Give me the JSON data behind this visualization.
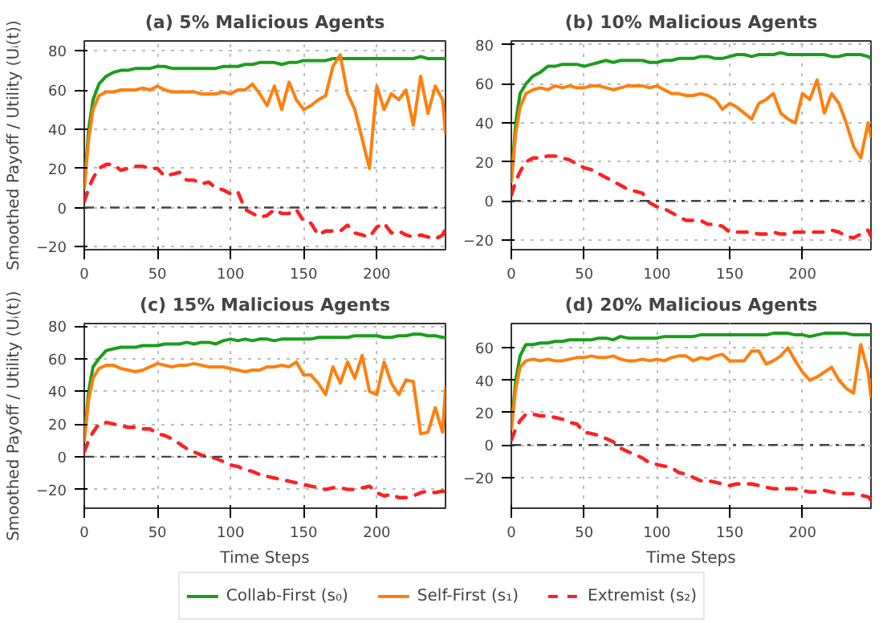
{
  "chart_data": [
    {
      "type": "line",
      "title": "(a) 5% Malicious Agents",
      "ylabel": "Smoothed Payoff / Utility (Uᵢ(t))",
      "xlim": [
        0,
        247
      ],
      "xticks": [
        0,
        50,
        100,
        150,
        200
      ],
      "ylim": [
        -21.5,
        85
      ],
      "yticks": [
        -20,
        0,
        20,
        40,
        60,
        80
      ],
      "grid": true,
      "legend": "bottom",
      "x": [
        0,
        3,
        6,
        10,
        15,
        20,
        25,
        30,
        35,
        40,
        45,
        50,
        55,
        60,
        65,
        70,
        75,
        80,
        85,
        90,
        95,
        100,
        105,
        110,
        115,
        120,
        125,
        130,
        135,
        140,
        145,
        150,
        155,
        160,
        165,
        170,
        175,
        180,
        185,
        190,
        195,
        200,
        205,
        210,
        215,
        220,
        225,
        230,
        235,
        240,
        245,
        247
      ],
      "ref_lines": [
        {
          "axis": "y",
          "value": 0,
          "color": "#444444",
          "line_style": "dashdot"
        }
      ],
      "series": [
        {
          "name": "Collab-First (s₀)",
          "color": "#1a9e1a",
          "line_style": "solid",
          "values": [
            10,
            40,
            55,
            63,
            67,
            69,
            70,
            70,
            71,
            71,
            71,
            72,
            72,
            71,
            71,
            71,
            71,
            71,
            71,
            71,
            72,
            72,
            72,
            73,
            73,
            74,
            74,
            74,
            73,
            74,
            74,
            75,
            75,
            75,
            75,
            76,
            76,
            76,
            76,
            76,
            76,
            76,
            76,
            76,
            76,
            76,
            76,
            77,
            76,
            76,
            76,
            76
          ]
        },
        {
          "name": "Self-First (s₁)",
          "color": "#ff7f0e",
          "line_style": "solid",
          "values": [
            10,
            35,
            50,
            57,
            59,
            59,
            60,
            60,
            60,
            61,
            60,
            62,
            60,
            59,
            59,
            59,
            59,
            58,
            58,
            58,
            59,
            58,
            60,
            60,
            63,
            58,
            52,
            62,
            50,
            64,
            55,
            50,
            52,
            55,
            57,
            72,
            78,
            58,
            50,
            35,
            20,
            62,
            50,
            58,
            55,
            60,
            42,
            67,
            48,
            62,
            55,
            38
          ]
        },
        {
          "name": "Extremist (s₂)",
          "color": "#ff2020",
          "line_style": "dashed",
          "values": [
            3,
            10,
            15,
            20,
            22,
            22,
            19,
            20,
            21,
            21,
            20,
            20,
            16,
            17,
            18,
            14,
            14,
            12,
            13,
            10,
            9,
            7,
            8,
            -1,
            -3,
            -5,
            -4,
            -1,
            -3,
            -3,
            -1,
            -7,
            -8,
            -14,
            -12,
            -12,
            -12,
            -9,
            -13,
            -14,
            -15,
            -10,
            -8,
            -13,
            -12,
            -14,
            -15,
            -14,
            -15,
            -16,
            -14,
            -11
          ]
        }
      ]
    },
    {
      "type": "line",
      "title": "(b) 10% Malicious Agents",
      "xlim": [
        0,
        247
      ],
      "xticks": [
        0,
        50,
        100,
        150,
        200
      ],
      "ylim": [
        -25,
        82
      ],
      "yticks": [
        -20,
        0,
        20,
        40,
        60,
        80
      ],
      "grid": true,
      "x": [
        0,
        3,
        6,
        10,
        15,
        20,
        25,
        30,
        35,
        40,
        45,
        50,
        55,
        60,
        65,
        70,
        75,
        80,
        85,
        90,
        95,
        100,
        105,
        110,
        115,
        120,
        125,
        130,
        135,
        140,
        145,
        150,
        155,
        160,
        165,
        170,
        175,
        180,
        185,
        190,
        195,
        200,
        205,
        210,
        215,
        220,
        225,
        230,
        235,
        240,
        245,
        247
      ],
      "ref_lines": [
        {
          "axis": "y",
          "value": 0,
          "color": "#444444",
          "line_style": "dashdot"
        }
      ],
      "series": [
        {
          "color": "#1a9e1a",
          "line_style": "solid",
          "values": [
            10,
            40,
            55,
            60,
            64,
            66,
            69,
            69,
            70,
            70,
            70,
            69,
            70,
            71,
            72,
            71,
            72,
            72,
            72,
            72,
            71,
            71,
            72,
            72,
            73,
            73,
            73,
            74,
            74,
            73,
            73,
            74,
            75,
            75,
            74,
            75,
            75,
            75,
            76,
            75,
            75,
            75,
            75,
            75,
            75,
            74,
            74,
            75,
            75,
            75,
            74,
            73
          ]
        },
        {
          "color": "#ff7f0e",
          "line_style": "solid",
          "values": [
            10,
            35,
            48,
            55,
            57,
            58,
            57,
            59,
            58,
            59,
            58,
            58,
            59,
            59,
            58,
            57,
            58,
            59,
            59,
            59,
            58,
            59,
            57,
            55,
            55,
            54,
            54,
            55,
            54,
            52,
            47,
            50,
            48,
            45,
            42,
            50,
            52,
            55,
            45,
            42,
            40,
            55,
            52,
            62,
            45,
            55,
            50,
            40,
            28,
            22,
            40,
            33
          ]
        },
        {
          "color": "#ff2020",
          "line_style": "dashed",
          "values": [
            3,
            10,
            15,
            20,
            22,
            22,
            23,
            23,
            22,
            21,
            19,
            17,
            16,
            14,
            12,
            10,
            8,
            6,
            5,
            4,
            -1,
            -3,
            -4,
            -6,
            -8,
            -10,
            -10,
            -10,
            -12,
            -12,
            -13,
            -16,
            -16,
            -16,
            -16,
            -17,
            -17,
            -16,
            -17,
            -17,
            -16,
            -16,
            -16,
            -16,
            -16,
            -15,
            -16,
            -18,
            -19,
            -17,
            -15,
            -18
          ]
        }
      ]
    },
    {
      "type": "line",
      "title": "(c) 15% Malicious Agents",
      "xlabel": "Time Steps",
      "ylabel": "Smoothed Payoff / Utility (Uᵢ(t))",
      "xlim": [
        0,
        247
      ],
      "xticks": [
        0,
        50,
        100,
        150,
        200
      ],
      "ylim": [
        -31.5,
        81.5
      ],
      "yticks": [
        -20,
        0,
        20,
        40,
        60,
        80
      ],
      "grid": true,
      "x": [
        0,
        3,
        6,
        10,
        15,
        20,
        25,
        30,
        35,
        40,
        45,
        50,
        55,
        60,
        65,
        70,
        75,
        80,
        85,
        90,
        95,
        100,
        105,
        110,
        115,
        120,
        125,
        130,
        135,
        140,
        145,
        150,
        155,
        160,
        165,
        170,
        175,
        180,
        185,
        190,
        195,
        200,
        205,
        210,
        215,
        220,
        225,
        230,
        235,
        240,
        245,
        247
      ],
      "ref_lines": [
        {
          "axis": "y",
          "value": 0,
          "color": "#444444",
          "line_style": "dashdot"
        }
      ],
      "series": [
        {
          "color": "#1a9e1a",
          "line_style": "solid",
          "values": [
            10,
            40,
            55,
            60,
            65,
            66,
            67,
            67,
            67,
            68,
            68,
            68,
            69,
            69,
            69,
            70,
            69,
            70,
            70,
            69,
            71,
            72,
            71,
            72,
            71,
            72,
            72,
            71,
            72,
            72,
            72,
            72,
            72,
            73,
            73,
            73,
            73,
            73,
            74,
            74,
            74,
            74,
            73,
            73,
            74,
            74,
            75,
            75,
            74,
            74,
            73,
            73
          ]
        },
        {
          "color": "#ff7f0e",
          "line_style": "solid",
          "values": [
            10,
            35,
            48,
            54,
            56,
            56,
            54,
            53,
            52,
            53,
            55,
            57,
            56,
            55,
            56,
            56,
            57,
            56,
            55,
            55,
            55,
            54,
            53,
            52,
            53,
            53,
            55,
            55,
            56,
            55,
            58,
            50,
            50,
            45,
            38,
            55,
            45,
            58,
            48,
            62,
            40,
            38,
            58,
            45,
            38,
            47,
            46,
            14,
            15,
            30,
            15,
            42
          ]
        },
        {
          "color": "#ff2020",
          "line_style": "dashed",
          "values": [
            3,
            10,
            15,
            20,
            21,
            20,
            19,
            18,
            18,
            17,
            17,
            14,
            13,
            11,
            8,
            5,
            3,
            1,
            0,
            -1,
            -3,
            -5,
            -6,
            -8,
            -9,
            -11,
            -12,
            -13,
            -14,
            -15,
            -16,
            -17,
            -18,
            -19,
            -20,
            -19,
            -19,
            -20,
            -20,
            -19,
            -18,
            -22,
            -24,
            -23,
            -25,
            -25,
            -24,
            -22,
            -21,
            -22,
            -21,
            -22
          ]
        }
      ]
    },
    {
      "type": "line",
      "title": "(d) 20% Malicious Agents",
      "xlabel": "Time Steps",
      "xlim": [
        0,
        247
      ],
      "xticks": [
        0,
        50,
        100,
        150,
        200
      ],
      "ylim": [
        -39,
        75
      ],
      "yticks": [
        -20,
        0,
        20,
        40,
        60
      ],
      "grid": true,
      "x": [
        0,
        3,
        6,
        10,
        15,
        20,
        25,
        30,
        35,
        40,
        45,
        50,
        55,
        60,
        65,
        70,
        75,
        80,
        85,
        90,
        95,
        100,
        105,
        110,
        115,
        120,
        125,
        130,
        135,
        140,
        145,
        150,
        155,
        160,
        165,
        170,
        175,
        180,
        185,
        190,
        195,
        200,
        205,
        210,
        215,
        220,
        225,
        230,
        235,
        240,
        245,
        247
      ],
      "ref_lines": [
        {
          "axis": "y",
          "value": 0,
          "color": "#444444",
          "line_style": "dashdot"
        }
      ],
      "series": [
        {
          "color": "#1a9e1a",
          "line_style": "solid",
          "values": [
            10,
            40,
            55,
            62,
            62,
            63,
            63,
            64,
            64,
            65,
            65,
            65,
            65,
            66,
            66,
            65,
            67,
            66,
            66,
            66,
            66,
            66,
            67,
            67,
            67,
            67,
            67,
            68,
            68,
            68,
            68,
            68,
            68,
            68,
            68,
            68,
            68,
            69,
            69,
            69,
            68,
            68,
            67,
            68,
            69,
            69,
            69,
            69,
            68,
            68,
            68,
            68
          ]
        },
        {
          "color": "#ff7f0e",
          "line_style": "solid",
          "values": [
            10,
            35,
            48,
            52,
            53,
            52,
            53,
            52,
            52,
            53,
            54,
            54,
            55,
            54,
            54,
            55,
            53,
            52,
            52,
            53,
            52,
            53,
            52,
            54,
            55,
            55,
            52,
            54,
            53,
            55,
            56,
            52,
            52,
            52,
            58,
            58,
            50,
            52,
            55,
            60,
            52,
            45,
            40,
            42,
            45,
            48,
            40,
            35,
            32,
            62,
            45,
            30
          ]
        },
        {
          "color": "#ff2020",
          "line_style": "dashed",
          "values": [
            3,
            10,
            15,
            19,
            19,
            18,
            18,
            17,
            16,
            14,
            13,
            8,
            7,
            6,
            4,
            2,
            -2,
            -4,
            -6,
            -8,
            -11,
            -12,
            -13,
            -14,
            -17,
            -18,
            -20,
            -22,
            -22,
            -23,
            -24,
            -25,
            -24,
            -24,
            -24,
            -25,
            -26,
            -27,
            -27,
            -27,
            -27,
            -28,
            -29,
            -29,
            -28,
            -29,
            -30,
            -30,
            -30,
            -31,
            -32,
            -34
          ]
        }
      ]
    }
  ]
}
